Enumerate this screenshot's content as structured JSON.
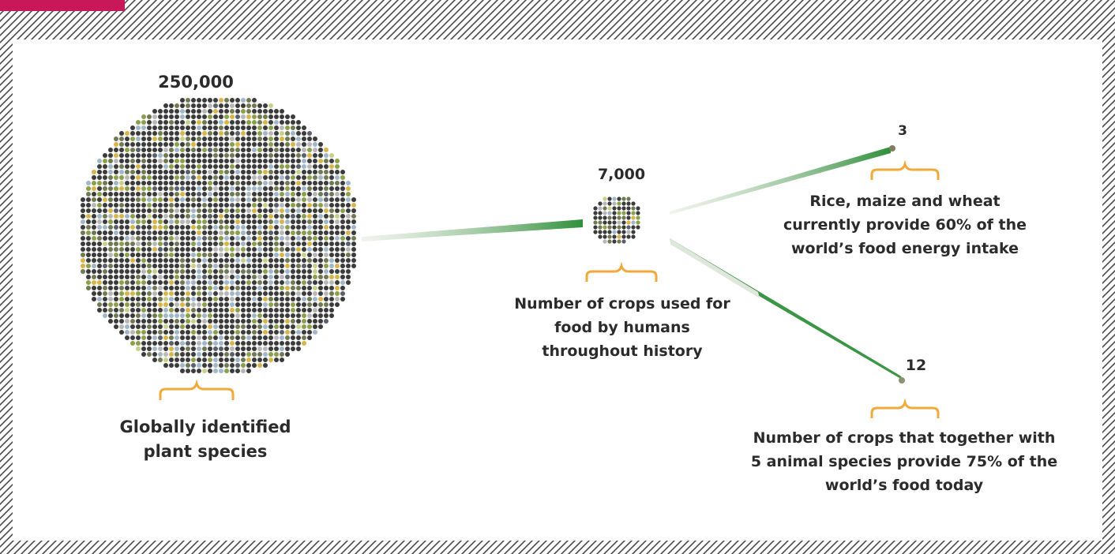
{
  "colors": {
    "accent_tab": "#c8185a",
    "border_hatch": "#4a4a4a",
    "bracket": "#f2a93b",
    "connector": "#2f8f3a",
    "dot_palette": [
      "#3b3b3b",
      "#6f7a52",
      "#8aa04a",
      "#9fb7c9",
      "#d9b44a",
      "#b7b7b7",
      "#59606b",
      "#c7d08a"
    ]
  },
  "nodes": {
    "global_species": {
      "value": "250,000",
      "description": "Globally identified plant species"
    },
    "crops_history": {
      "value": "7,000",
      "description": "Number of crops used for food by humans throughout history"
    },
    "staple_crops": {
      "value": "3",
      "description": "Rice, maize and wheat currently provide 60% of the world’s food energy intake"
    },
    "core_crops": {
      "value": "12",
      "description": "Number of crops that together with 5 animal species provide 75% of the world’s food today"
    }
  }
}
